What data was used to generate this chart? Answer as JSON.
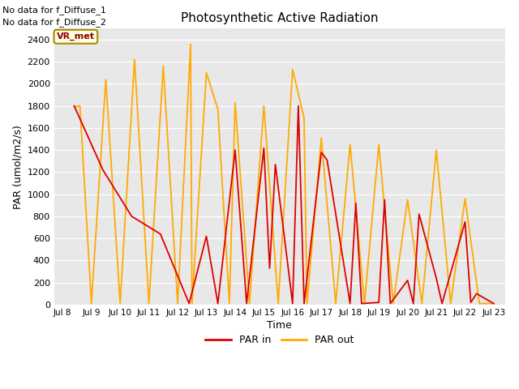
{
  "title": "Photosynthetic Active Radiation",
  "xlabel": "Time",
  "ylabel": "PAR (umol/m2/s)",
  "text_top_left_1": "No data for f_Diffuse_1",
  "text_top_left_2": "No data for f_Diffuse_2",
  "label_box": "VR_met",
  "ylim": [
    0,
    2500
  ],
  "yticks": [
    0,
    200,
    400,
    600,
    800,
    1000,
    1200,
    1400,
    1600,
    1800,
    2000,
    2200,
    2400
  ],
  "xtick_labels": [
    "Jul 8",
    "Jul 9",
    "Jul 10",
    "Jul 11",
    "Jul 12",
    "Jul 13",
    "Jul 14",
    "Jul 15",
    "Jul 16",
    "Jul 17",
    "Jul 18",
    "Jul 19",
    "Jul 20",
    "Jul 21",
    "Jul 22",
    "Jul 23"
  ],
  "color_par_in": "#dd0000",
  "color_par_out": "#ffaa00",
  "background_color": "#e8e8e8",
  "legend_par_in": "PAR in",
  "legend_par_out": "PAR out",
  "par_out_times": [
    8.4,
    8.6,
    9.0,
    9.5,
    10.0,
    10.5,
    11.0,
    11.5,
    12.0,
    12.45,
    12.5,
    13.0,
    13.4,
    13.8,
    14.0,
    14.5,
    15.0,
    15.5,
    16.0,
    16.4,
    16.5,
    17.0,
    17.5,
    18.0,
    18.5,
    19.0,
    19.5,
    20.0,
    20.5,
    21.0,
    21.5,
    22.0,
    22.5,
    23.0
  ],
  "par_out_vals": [
    1790,
    1800,
    10,
    2040,
    10,
    2220,
    10,
    2160,
    10,
    2360,
    10,
    2100,
    1770,
    10,
    1830,
    10,
    1800,
    10,
    2130,
    1690,
    10,
    1510,
    10,
    1450,
    10,
    1450,
    10,
    950,
    10,
    1400,
    10,
    960,
    10,
    10
  ],
  "par_in_times": [
    8.4,
    9.4,
    10.4,
    11.4,
    12.4,
    13.0,
    13.4,
    14.0,
    14.4,
    15.0,
    15.2,
    15.4,
    16.0,
    16.2,
    16.4,
    17.0,
    17.2,
    18.0,
    18.2,
    18.4,
    19.0,
    19.2,
    19.4,
    20.0,
    20.2,
    20.4,
    21.0,
    21.2,
    22.0,
    22.2,
    22.4,
    23.0
  ],
  "par_in_vals": [
    1800,
    1220,
    800,
    640,
    10,
    620,
    10,
    1400,
    10,
    1420,
    330,
    1270,
    10,
    1800,
    10,
    1380,
    1310,
    10,
    920,
    10,
    20,
    950,
    10,
    220,
    10,
    820,
    240,
    10,
    750,
    20,
    100,
    10
  ]
}
